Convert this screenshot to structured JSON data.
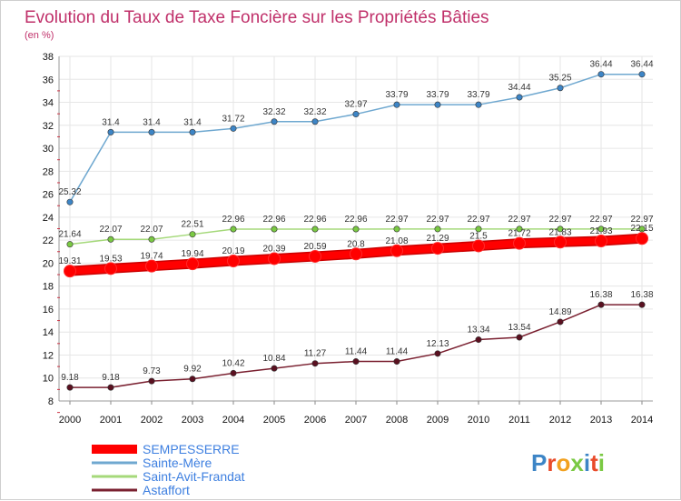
{
  "chart_data": {
    "type": "line",
    "title": "Evolution du Taux de Taxe Foncière sur les Propriétés Bâties",
    "ylabel": "(en %)",
    "xlabel": "",
    "ylim": [
      8,
      38
    ],
    "yticks": [
      8,
      10,
      12,
      14,
      16,
      18,
      20,
      22,
      24,
      26,
      28,
      30,
      32,
      34,
      36,
      38
    ],
    "categories": [
      "2000",
      "2001",
      "2002",
      "2003",
      "2004",
      "2005",
      "2006",
      "2007",
      "2008",
      "2009",
      "2010",
      "2011",
      "2012",
      "2013",
      "2014"
    ],
    "grid": true,
    "legend_position": "bottom-left",
    "series": [
      {
        "name": "Sainte-Mère",
        "color": "#6fa8d0",
        "marker_color": "#3d85c6",
        "values": [
          25.32,
          31.4,
          31.4,
          31.4,
          31.72,
          32.32,
          32.32,
          32.97,
          33.79,
          33.79,
          33.79,
          34.44,
          35.25,
          36.44,
          36.44
        ],
        "labels": [
          "25.32",
          "31.4",
          "31.4",
          "31.4",
          "31.72",
          "32.32",
          "32.32",
          "32.97",
          "33.79",
          "33.79",
          "33.79",
          "34.44",
          "35.25",
          "36.44",
          "36.44"
        ]
      },
      {
        "name": "Saint-Avit-Frandat",
        "color": "#a5d97a",
        "marker_color": "#7ac943",
        "values": [
          21.64,
          22.07,
          22.07,
          22.51,
          22.96,
          22.96,
          22.96,
          22.96,
          22.97,
          22.97,
          22.97,
          22.97,
          22.97,
          22.97,
          22.97
        ],
        "labels": [
          "21.64",
          "22.07",
          "22.07",
          "22.51",
          "22.96",
          "22.96",
          "22.96",
          "22.96",
          "22.97",
          "22.97",
          "22.97",
          "22.97",
          "22.97",
          "22.97",
          "22.97"
        ]
      },
      {
        "name": "SEMPESSERRE",
        "color": "#ff0000",
        "marker_color": "#ff0000",
        "values": [
          19.31,
          19.53,
          19.74,
          19.94,
          20.19,
          20.39,
          20.59,
          20.8,
          21.08,
          21.29,
          21.5,
          21.72,
          21.83,
          21.93,
          22.15
        ],
        "labels": [
          "19.31",
          "19.53",
          "19.74",
          "19.94",
          "20.19",
          "20.39",
          "20.59",
          "20.8",
          "21.08",
          "21.29",
          "21.5",
          "21.72",
          "21.83",
          "21.93",
          "22.15"
        ]
      },
      {
        "name": "Astaffort",
        "color": "#7a2030",
        "marker_color": "#5a1020",
        "values": [
          9.18,
          9.18,
          9.73,
          9.92,
          10.42,
          10.84,
          11.27,
          11.44,
          11.44,
          12.13,
          13.34,
          13.54,
          14.89,
          16.38,
          16.38
        ],
        "labels": [
          "9.18",
          "9.18",
          "9.73",
          "9.92",
          "10.42",
          "10.84",
          "11.27",
          "11.44",
          "11.44",
          "12.13",
          "13.34",
          "13.54",
          "14.89",
          "16.38",
          "16.38"
        ]
      }
    ],
    "legend": [
      {
        "name": "SEMPESSERRE",
        "color": "#ff0000",
        "text_color": "#3d7fe0"
      },
      {
        "name": "Sainte-Mère",
        "color": "#6fa8d0",
        "text_color": "#3d7fe0"
      },
      {
        "name": "Saint-Avit-Frandat",
        "color": "#a5d97a",
        "text_color": "#3d7fe0"
      },
      {
        "name": "Astaffort",
        "color": "#7a2030",
        "text_color": "#3d7fe0"
      }
    ]
  },
  "logo": {
    "text": "Proxiti"
  }
}
